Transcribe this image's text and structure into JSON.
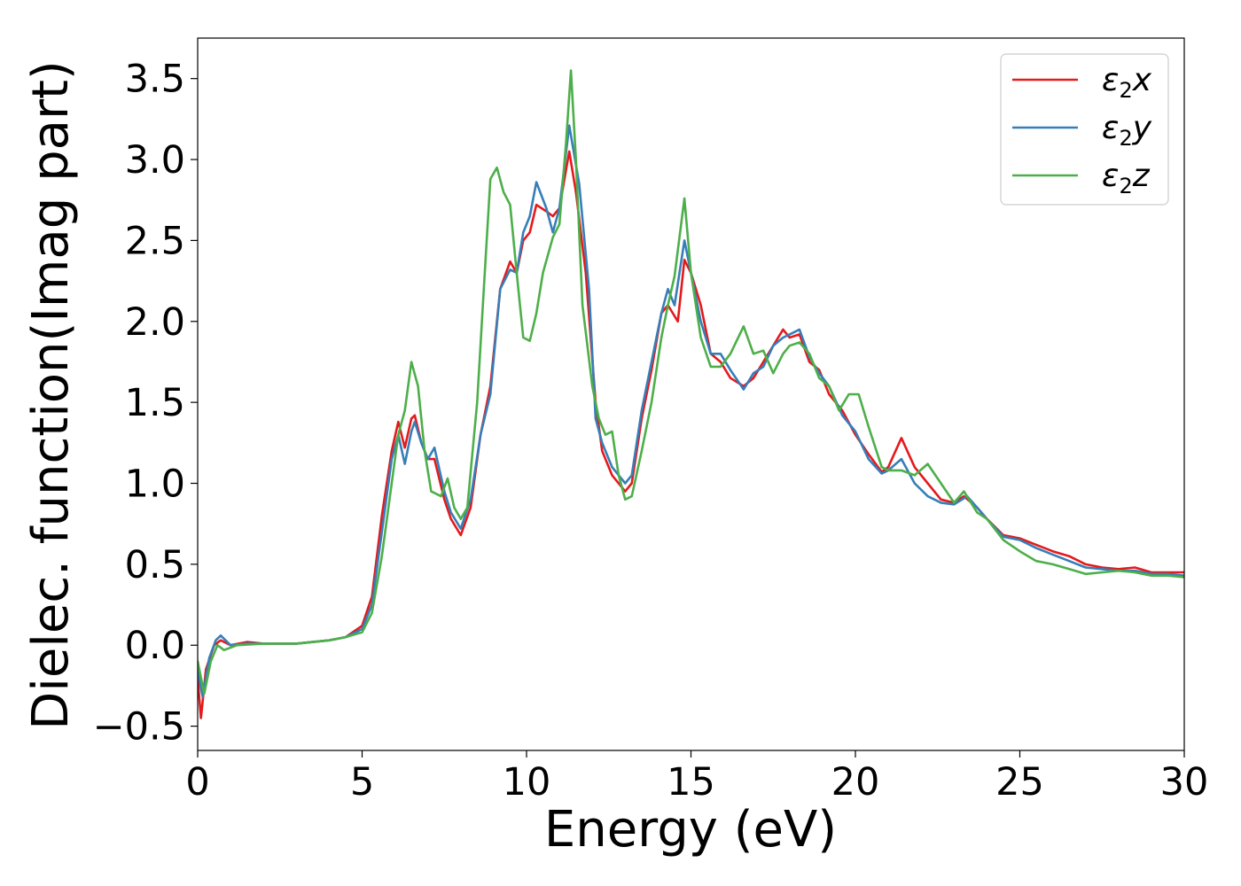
{
  "chart_data": {
    "type": "line",
    "xlabel": "Energy (eV)",
    "ylabel": "Dielec. function(Imag part)",
    "xlim": [
      0,
      30
    ],
    "ylim": [
      -0.65,
      3.75
    ],
    "xticks": [
      0,
      5,
      10,
      15,
      20,
      25,
      30
    ],
    "xtick_labels": [
      "0",
      "5",
      "10",
      "15",
      "20",
      "25",
      "30"
    ],
    "yticks": [
      -0.5,
      0.0,
      0.5,
      1.0,
      1.5,
      2.0,
      2.5,
      3.0,
      3.5
    ],
    "ytick_labels": [
      "−0.5",
      "0.0",
      "0.5",
      "1.0",
      "1.5",
      "2.0",
      "2.5",
      "3.0",
      "3.5"
    ],
    "grid": false,
    "legend_position": "top-right",
    "series": [
      {
        "name": "ε2x",
        "name_parts": [
          "ε",
          "2",
          "x"
        ],
        "color": "#e41a1c",
        "points": [
          [
            0.0,
            -0.2
          ],
          [
            0.1,
            -0.45
          ],
          [
            0.25,
            -0.15
          ],
          [
            0.5,
            0.0
          ],
          [
            0.7,
            0.03
          ],
          [
            1.0,
            0.0
          ],
          [
            1.5,
            0.02
          ],
          [
            2.0,
            0.01
          ],
          [
            3.0,
            0.01
          ],
          [
            4.0,
            0.03
          ],
          [
            4.5,
            0.05
          ],
          [
            5.0,
            0.12
          ],
          [
            5.3,
            0.3
          ],
          [
            5.6,
            0.8
          ],
          [
            5.9,
            1.2
          ],
          [
            6.1,
            1.38
          ],
          [
            6.3,
            1.22
          ],
          [
            6.5,
            1.4
          ],
          [
            6.6,
            1.42
          ],
          [
            6.8,
            1.25
          ],
          [
            7.0,
            1.15
          ],
          [
            7.2,
            1.15
          ],
          [
            7.5,
            0.9
          ],
          [
            7.7,
            0.78
          ],
          [
            8.0,
            0.68
          ],
          [
            8.3,
            0.85
          ],
          [
            8.6,
            1.3
          ],
          [
            8.9,
            1.6
          ],
          [
            9.2,
            2.2
          ],
          [
            9.5,
            2.37
          ],
          [
            9.7,
            2.3
          ],
          [
            9.9,
            2.5
          ],
          [
            10.1,
            2.55
          ],
          [
            10.3,
            2.72
          ],
          [
            10.6,
            2.68
          ],
          [
            10.8,
            2.65
          ],
          [
            11.0,
            2.7
          ],
          [
            11.3,
            3.05
          ],
          [
            11.5,
            2.8
          ],
          [
            11.8,
            2.3
          ],
          [
            12.1,
            1.5
          ],
          [
            12.3,
            1.2
          ],
          [
            12.6,
            1.05
          ],
          [
            13.0,
            0.95
          ],
          [
            13.2,
            1.0
          ],
          [
            13.5,
            1.4
          ],
          [
            13.8,
            1.7
          ],
          [
            14.1,
            2.05
          ],
          [
            14.3,
            2.1
          ],
          [
            14.6,
            2.0
          ],
          [
            14.8,
            2.38
          ],
          [
            15.0,
            2.3
          ],
          [
            15.3,
            2.1
          ],
          [
            15.6,
            1.8
          ],
          [
            15.9,
            1.75
          ],
          [
            16.2,
            1.65
          ],
          [
            16.6,
            1.6
          ],
          [
            16.9,
            1.65
          ],
          [
            17.2,
            1.75
          ],
          [
            17.5,
            1.85
          ],
          [
            17.8,
            1.95
          ],
          [
            18.0,
            1.9
          ],
          [
            18.3,
            1.92
          ],
          [
            18.6,
            1.75
          ],
          [
            18.9,
            1.7
          ],
          [
            19.2,
            1.55
          ],
          [
            19.6,
            1.45
          ],
          [
            20.0,
            1.3
          ],
          [
            20.4,
            1.18
          ],
          [
            20.8,
            1.07
          ],
          [
            21.0,
            1.1
          ],
          [
            21.4,
            1.28
          ],
          [
            21.8,
            1.1
          ],
          [
            22.2,
            1.0
          ],
          [
            22.6,
            0.9
          ],
          [
            23.0,
            0.88
          ],
          [
            23.3,
            0.92
          ],
          [
            23.7,
            0.85
          ],
          [
            24.0,
            0.78
          ],
          [
            24.5,
            0.68
          ],
          [
            25.0,
            0.66
          ],
          [
            25.5,
            0.62
          ],
          [
            26.0,
            0.58
          ],
          [
            26.5,
            0.55
          ],
          [
            27.0,
            0.5
          ],
          [
            27.5,
            0.48
          ],
          [
            28.0,
            0.47
          ],
          [
            28.5,
            0.48
          ],
          [
            29.0,
            0.45
          ],
          [
            29.5,
            0.45
          ],
          [
            30.0,
            0.45
          ]
        ]
      },
      {
        "name": "ε2y",
        "name_parts": [
          "ε",
          "2",
          "y"
        ],
        "color": "#377eb8",
        "points": [
          [
            0.0,
            -0.15
          ],
          [
            0.15,
            -0.32
          ],
          [
            0.35,
            -0.08
          ],
          [
            0.55,
            0.03
          ],
          [
            0.7,
            0.06
          ],
          [
            1.0,
            0.0
          ],
          [
            1.5,
            0.01
          ],
          [
            2.0,
            0.01
          ],
          [
            3.0,
            0.01
          ],
          [
            4.0,
            0.03
          ],
          [
            4.5,
            0.05
          ],
          [
            5.0,
            0.1
          ],
          [
            5.3,
            0.25
          ],
          [
            5.6,
            0.7
          ],
          [
            5.9,
            1.15
          ],
          [
            6.1,
            1.3
          ],
          [
            6.3,
            1.12
          ],
          [
            6.5,
            1.32
          ],
          [
            6.6,
            1.38
          ],
          [
            6.8,
            1.25
          ],
          [
            7.0,
            1.15
          ],
          [
            7.2,
            1.22
          ],
          [
            7.5,
            0.95
          ],
          [
            7.7,
            0.82
          ],
          [
            8.0,
            0.72
          ],
          [
            8.3,
            0.9
          ],
          [
            8.6,
            1.3
          ],
          [
            8.9,
            1.55
          ],
          [
            9.2,
            2.2
          ],
          [
            9.5,
            2.32
          ],
          [
            9.7,
            2.3
          ],
          [
            9.9,
            2.55
          ],
          [
            10.1,
            2.65
          ],
          [
            10.3,
            2.86
          ],
          [
            10.6,
            2.7
          ],
          [
            10.8,
            2.55
          ],
          [
            11.0,
            2.7
          ],
          [
            11.3,
            3.21
          ],
          [
            11.6,
            2.85
          ],
          [
            11.9,
            2.2
          ],
          [
            12.1,
            1.4
          ],
          [
            12.3,
            1.25
          ],
          [
            12.6,
            1.1
          ],
          [
            13.0,
            1.0
          ],
          [
            13.2,
            1.05
          ],
          [
            13.5,
            1.45
          ],
          [
            13.8,
            1.75
          ],
          [
            14.1,
            2.05
          ],
          [
            14.3,
            2.2
          ],
          [
            14.5,
            2.1
          ],
          [
            14.8,
            2.5
          ],
          [
            15.0,
            2.3
          ],
          [
            15.3,
            2.0
          ],
          [
            15.6,
            1.8
          ],
          [
            15.9,
            1.8
          ],
          [
            16.2,
            1.7
          ],
          [
            16.6,
            1.58
          ],
          [
            16.9,
            1.68
          ],
          [
            17.2,
            1.72
          ],
          [
            17.5,
            1.85
          ],
          [
            17.8,
            1.9
          ],
          [
            18.0,
            1.92
          ],
          [
            18.3,
            1.95
          ],
          [
            18.6,
            1.78
          ],
          [
            18.9,
            1.68
          ],
          [
            19.2,
            1.6
          ],
          [
            19.6,
            1.42
          ],
          [
            20.0,
            1.32
          ],
          [
            20.4,
            1.15
          ],
          [
            20.8,
            1.06
          ],
          [
            21.0,
            1.08
          ],
          [
            21.4,
            1.15
          ],
          [
            21.8,
            1.0
          ],
          [
            22.2,
            0.92
          ],
          [
            22.6,
            0.88
          ],
          [
            23.0,
            0.87
          ],
          [
            23.4,
            0.92
          ],
          [
            23.7,
            0.85
          ],
          [
            24.0,
            0.78
          ],
          [
            24.5,
            0.67
          ],
          [
            25.0,
            0.65
          ],
          [
            25.5,
            0.6
          ],
          [
            26.0,
            0.56
          ],
          [
            26.5,
            0.52
          ],
          [
            27.0,
            0.48
          ],
          [
            27.5,
            0.47
          ],
          [
            28.0,
            0.46
          ],
          [
            28.5,
            0.46
          ],
          [
            29.0,
            0.44
          ],
          [
            29.5,
            0.44
          ],
          [
            30.0,
            0.43
          ]
        ]
      },
      {
        "name": "ε2z",
        "name_parts": [
          "ε",
          "2",
          "z"
        ],
        "color": "#4daf4a",
        "points": [
          [
            0.0,
            -0.1
          ],
          [
            0.2,
            -0.3
          ],
          [
            0.4,
            -0.1
          ],
          [
            0.6,
            0.0
          ],
          [
            0.8,
            -0.03
          ],
          [
            1.2,
            0.0
          ],
          [
            2.0,
            0.01
          ],
          [
            3.0,
            0.01
          ],
          [
            4.0,
            0.03
          ],
          [
            4.5,
            0.05
          ],
          [
            5.0,
            0.08
          ],
          [
            5.3,
            0.2
          ],
          [
            5.6,
            0.55
          ],
          [
            5.9,
            1.0
          ],
          [
            6.1,
            1.3
          ],
          [
            6.3,
            1.45
          ],
          [
            6.5,
            1.75
          ],
          [
            6.7,
            1.6
          ],
          [
            6.9,
            1.2
          ],
          [
            7.1,
            0.95
          ],
          [
            7.4,
            0.92
          ],
          [
            7.6,
            1.03
          ],
          [
            7.8,
            0.85
          ],
          [
            8.0,
            0.78
          ],
          [
            8.2,
            0.85
          ],
          [
            8.5,
            1.5
          ],
          [
            8.7,
            2.2
          ],
          [
            8.9,
            2.88
          ],
          [
            9.1,
            2.95
          ],
          [
            9.3,
            2.8
          ],
          [
            9.5,
            2.72
          ],
          [
            9.7,
            2.3
          ],
          [
            9.9,
            1.9
          ],
          [
            10.1,
            1.88
          ],
          [
            10.3,
            2.05
          ],
          [
            10.5,
            2.3
          ],
          [
            10.8,
            2.52
          ],
          [
            11.0,
            2.6
          ],
          [
            11.2,
            3.1
          ],
          [
            11.35,
            3.55
          ],
          [
            11.5,
            3.0
          ],
          [
            11.7,
            2.1
          ],
          [
            12.0,
            1.6
          ],
          [
            12.2,
            1.4
          ],
          [
            12.4,
            1.3
          ],
          [
            12.6,
            1.32
          ],
          [
            12.8,
            1.05
          ],
          [
            13.0,
            0.9
          ],
          [
            13.2,
            0.92
          ],
          [
            13.5,
            1.2
          ],
          [
            13.8,
            1.5
          ],
          [
            14.1,
            1.9
          ],
          [
            14.3,
            2.1
          ],
          [
            14.5,
            2.28
          ],
          [
            14.8,
            2.76
          ],
          [
            15.0,
            2.3
          ],
          [
            15.3,
            1.9
          ],
          [
            15.6,
            1.72
          ],
          [
            15.9,
            1.72
          ],
          [
            16.2,
            1.8
          ],
          [
            16.6,
            1.97
          ],
          [
            16.9,
            1.8
          ],
          [
            17.2,
            1.82
          ],
          [
            17.5,
            1.68
          ],
          [
            17.8,
            1.8
          ],
          [
            18.0,
            1.85
          ],
          [
            18.3,
            1.87
          ],
          [
            18.6,
            1.8
          ],
          [
            18.9,
            1.65
          ],
          [
            19.2,
            1.6
          ],
          [
            19.5,
            1.45
          ],
          [
            19.8,
            1.55
          ],
          [
            20.1,
            1.55
          ],
          [
            20.4,
            1.35
          ],
          [
            20.8,
            1.1
          ],
          [
            21.0,
            1.08
          ],
          [
            21.4,
            1.08
          ],
          [
            21.8,
            1.05
          ],
          [
            22.2,
            1.12
          ],
          [
            22.6,
            1.0
          ],
          [
            23.0,
            0.88
          ],
          [
            23.3,
            0.95
          ],
          [
            23.7,
            0.82
          ],
          [
            24.0,
            0.78
          ],
          [
            24.5,
            0.65
          ],
          [
            25.0,
            0.58
          ],
          [
            25.5,
            0.52
          ],
          [
            26.0,
            0.5
          ],
          [
            26.5,
            0.47
          ],
          [
            27.0,
            0.44
          ],
          [
            27.5,
            0.45
          ],
          [
            28.0,
            0.46
          ],
          [
            28.5,
            0.45
          ],
          [
            29.0,
            0.43
          ],
          [
            29.5,
            0.43
          ],
          [
            30.0,
            0.42
          ]
        ]
      }
    ]
  }
}
